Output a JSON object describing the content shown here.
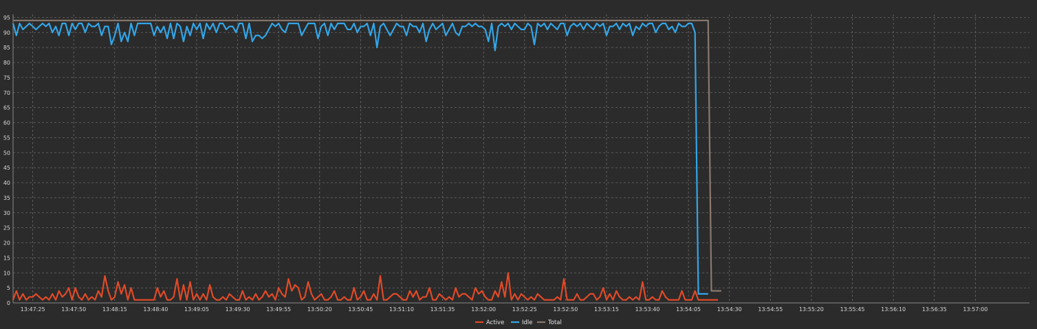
{
  "chart_data": {
    "type": "line",
    "title": "",
    "xlabel": "",
    "ylabel": "",
    "x_ticks": [
      "13:47:25",
      "13:47:50",
      "13:48:15",
      "13:48:40",
      "13:49:05",
      "13:49:30",
      "13:49:55",
      "13:50:20",
      "13:50:45",
      "13:51:10",
      "13:51:35",
      "13:52:00",
      "13:52:25",
      "13:52:50",
      "13:53:15",
      "13:53:40",
      "13:54:05",
      "13:54:30",
      "13:54:55",
      "13:55:20",
      "13:55:45",
      "13:56:10",
      "13:56:35",
      "13:57:00"
    ],
    "x_start": "13:47:13",
    "x_end": "13:57:33",
    "sample_interval_s": 2,
    "y_ticks": [
      0,
      5,
      10,
      15,
      20,
      25,
      30,
      35,
      40,
      45,
      50,
      55,
      60,
      65,
      70,
      75,
      80,
      85,
      90,
      95
    ],
    "ylim": [
      0,
      96
    ],
    "grid": true,
    "legend_position": "bottom-center",
    "series": [
      {
        "name": "Active",
        "color": "#e04a28",
        "values": [
          1,
          4,
          1,
          3,
          1,
          2,
          2,
          3,
          2,
          1,
          2,
          1,
          3,
          1,
          4,
          2,
          3,
          5,
          1,
          5,
          2,
          1,
          3,
          1,
          2,
          1,
          4,
          2,
          9,
          4,
          1,
          2,
          7,
          3,
          6,
          1,
          5,
          1,
          1,
          1,
          1,
          1,
          1,
          1,
          5,
          2,
          4,
          1,
          1,
          2,
          8,
          1,
          6,
          1,
          7,
          1,
          3,
          1,
          3,
          1,
          6,
          2,
          1,
          1,
          2,
          1,
          3,
          2,
          1,
          1,
          4,
          1,
          2,
          1,
          3,
          1,
          2,
          4,
          2,
          3,
          1,
          5,
          3,
          2,
          8,
          4,
          6,
          5,
          1,
          2,
          7,
          3,
          1,
          2,
          3,
          1,
          1,
          2,
          4,
          1,
          1,
          2,
          1,
          1,
          5,
          1,
          2,
          4,
          1,
          1,
          3,
          1,
          9,
          1,
          1,
          2,
          3,
          3,
          2,
          1,
          1,
          4,
          2,
          4,
          1,
          2,
          2,
          5,
          1,
          1,
          3,
          2,
          1,
          2,
          1,
          5,
          2,
          3,
          3,
          2,
          1,
          5,
          3,
          4,
          2,
          1,
          1,
          4,
          2,
          7,
          2,
          10,
          1,
          3,
          1,
          3,
          2,
          1,
          2,
          1,
          3,
          2,
          1,
          1,
          1,
          1,
          2,
          1,
          8,
          1,
          1,
          1,
          3,
          1,
          1,
          2,
          3,
          3,
          1,
          2,
          5,
          1,
          3,
          1,
          4,
          2,
          1,
          1,
          2,
          1,
          2,
          1,
          7,
          1,
          1,
          2,
          1,
          1,
          4,
          2,
          1,
          1,
          1,
          1,
          4,
          1,
          1,
          1,
          4,
          1
        ],
        "tail": [
          1,
          1,
          1,
          1,
          1,
          1
        ]
      },
      {
        "name": "Idle",
        "color": "#33a6e8",
        "values": [
          93,
          89,
          93,
          91,
          92,
          93,
          92,
          91,
          92,
          93,
          92,
          93,
          90,
          92,
          89,
          93,
          93,
          89,
          93,
          91,
          93,
          93,
          90,
          93,
          92,
          92,
          93,
          89,
          92,
          92,
          86,
          89,
          93,
          87,
          90,
          87,
          93,
          89,
          93,
          93,
          93,
          93,
          93,
          89,
          92,
          90,
          92,
          88,
          93,
          88,
          93,
          92,
          87,
          92,
          89,
          93,
          91,
          93,
          88,
          93,
          91,
          93,
          90,
          93,
          93,
          91,
          92,
          92,
          90,
          93,
          93,
          88,
          93,
          87,
          89,
          89,
          88,
          89,
          91,
          93,
          92,
          93,
          91,
          90,
          93,
          93,
          93,
          93,
          89,
          91,
          93,
          93,
          93,
          88,
          92,
          93,
          89,
          93,
          91,
          93,
          93,
          93,
          91,
          91,
          93,
          90,
          92,
          92,
          93,
          89,
          93,
          85,
          92,
          93,
          91,
          89,
          91,
          93,
          92,
          92,
          89,
          93,
          92,
          92,
          90,
          93,
          87,
          91,
          93,
          91,
          92,
          93,
          89,
          91,
          93,
          90,
          89,
          92,
          92,
          93,
          92,
          93,
          92,
          92,
          91,
          87,
          93,
          84,
          92,
          93,
          92,
          93,
          91,
          93,
          92,
          91,
          91,
          93,
          92,
          86,
          93,
          92,
          93,
          91,
          93,
          92,
          91,
          93,
          93,
          89,
          92,
          93,
          92,
          93,
          91,
          93,
          92,
          91,
          93,
          92,
          93,
          89,
          92,
          92,
          93,
          91,
          93,
          92,
          93,
          89,
          92,
          91,
          93,
          92,
          93,
          93,
          90,
          92,
          93,
          93,
          91,
          92,
          90,
          93,
          92,
          92,
          93
        ],
        "tail": [
          93,
          90,
          3,
          3,
          3,
          3
        ]
      },
      {
        "name": "Total",
        "color": "#8a7a70",
        "values": [
          94,
          94,
          94,
          94,
          94,
          94,
          94,
          94,
          94,
          94,
          94,
          94,
          94,
          94,
          94,
          94,
          94,
          94,
          94,
          94,
          94,
          94,
          94,
          94,
          94,
          94,
          94,
          94,
          94,
          94,
          94,
          94,
          94,
          94,
          94,
          94,
          94,
          94,
          94,
          94,
          94,
          94,
          94,
          94,
          94,
          94,
          94,
          94,
          94,
          94,
          94,
          94,
          94,
          94,
          94,
          94,
          94,
          94,
          94,
          94,
          94,
          94,
          94,
          94,
          94,
          94,
          94,
          94,
          94,
          94,
          94,
          94,
          94,
          94,
          94,
          94,
          94,
          94,
          94,
          94,
          94,
          94,
          94,
          94,
          94,
          94,
          94,
          94,
          94,
          94,
          94,
          94,
          94,
          94,
          94,
          94,
          94,
          94,
          94,
          94,
          94,
          94,
          94,
          94,
          94,
          94,
          94,
          94,
          94,
          94,
          94,
          94,
          94,
          94,
          94,
          94,
          94,
          94,
          94,
          94,
          94,
          94,
          94,
          94,
          94,
          94,
          94,
          94,
          94,
          94,
          94,
          94,
          94,
          94,
          94,
          94,
          94,
          94,
          94,
          94,
          94,
          94,
          94,
          94,
          94,
          94,
          94,
          94,
          94,
          94,
          94,
          94,
          94,
          94,
          94,
          94,
          94,
          94,
          94,
          94,
          94,
          94,
          94,
          94,
          94,
          94,
          94,
          94,
          94,
          94,
          94,
          94,
          94,
          94,
          94,
          94,
          94,
          94,
          94,
          94,
          94,
          94,
          94,
          94,
          94,
          94,
          94,
          94,
          94,
          94,
          94,
          94,
          94,
          94,
          94,
          94,
          94,
          94,
          94,
          94,
          94,
          94,
          94,
          94,
          94,
          94,
          94,
          94,
          94,
          94,
          94
        ],
        "tail": [
          94,
          94,
          4,
          4,
          4,
          4
        ]
      }
    ]
  }
}
